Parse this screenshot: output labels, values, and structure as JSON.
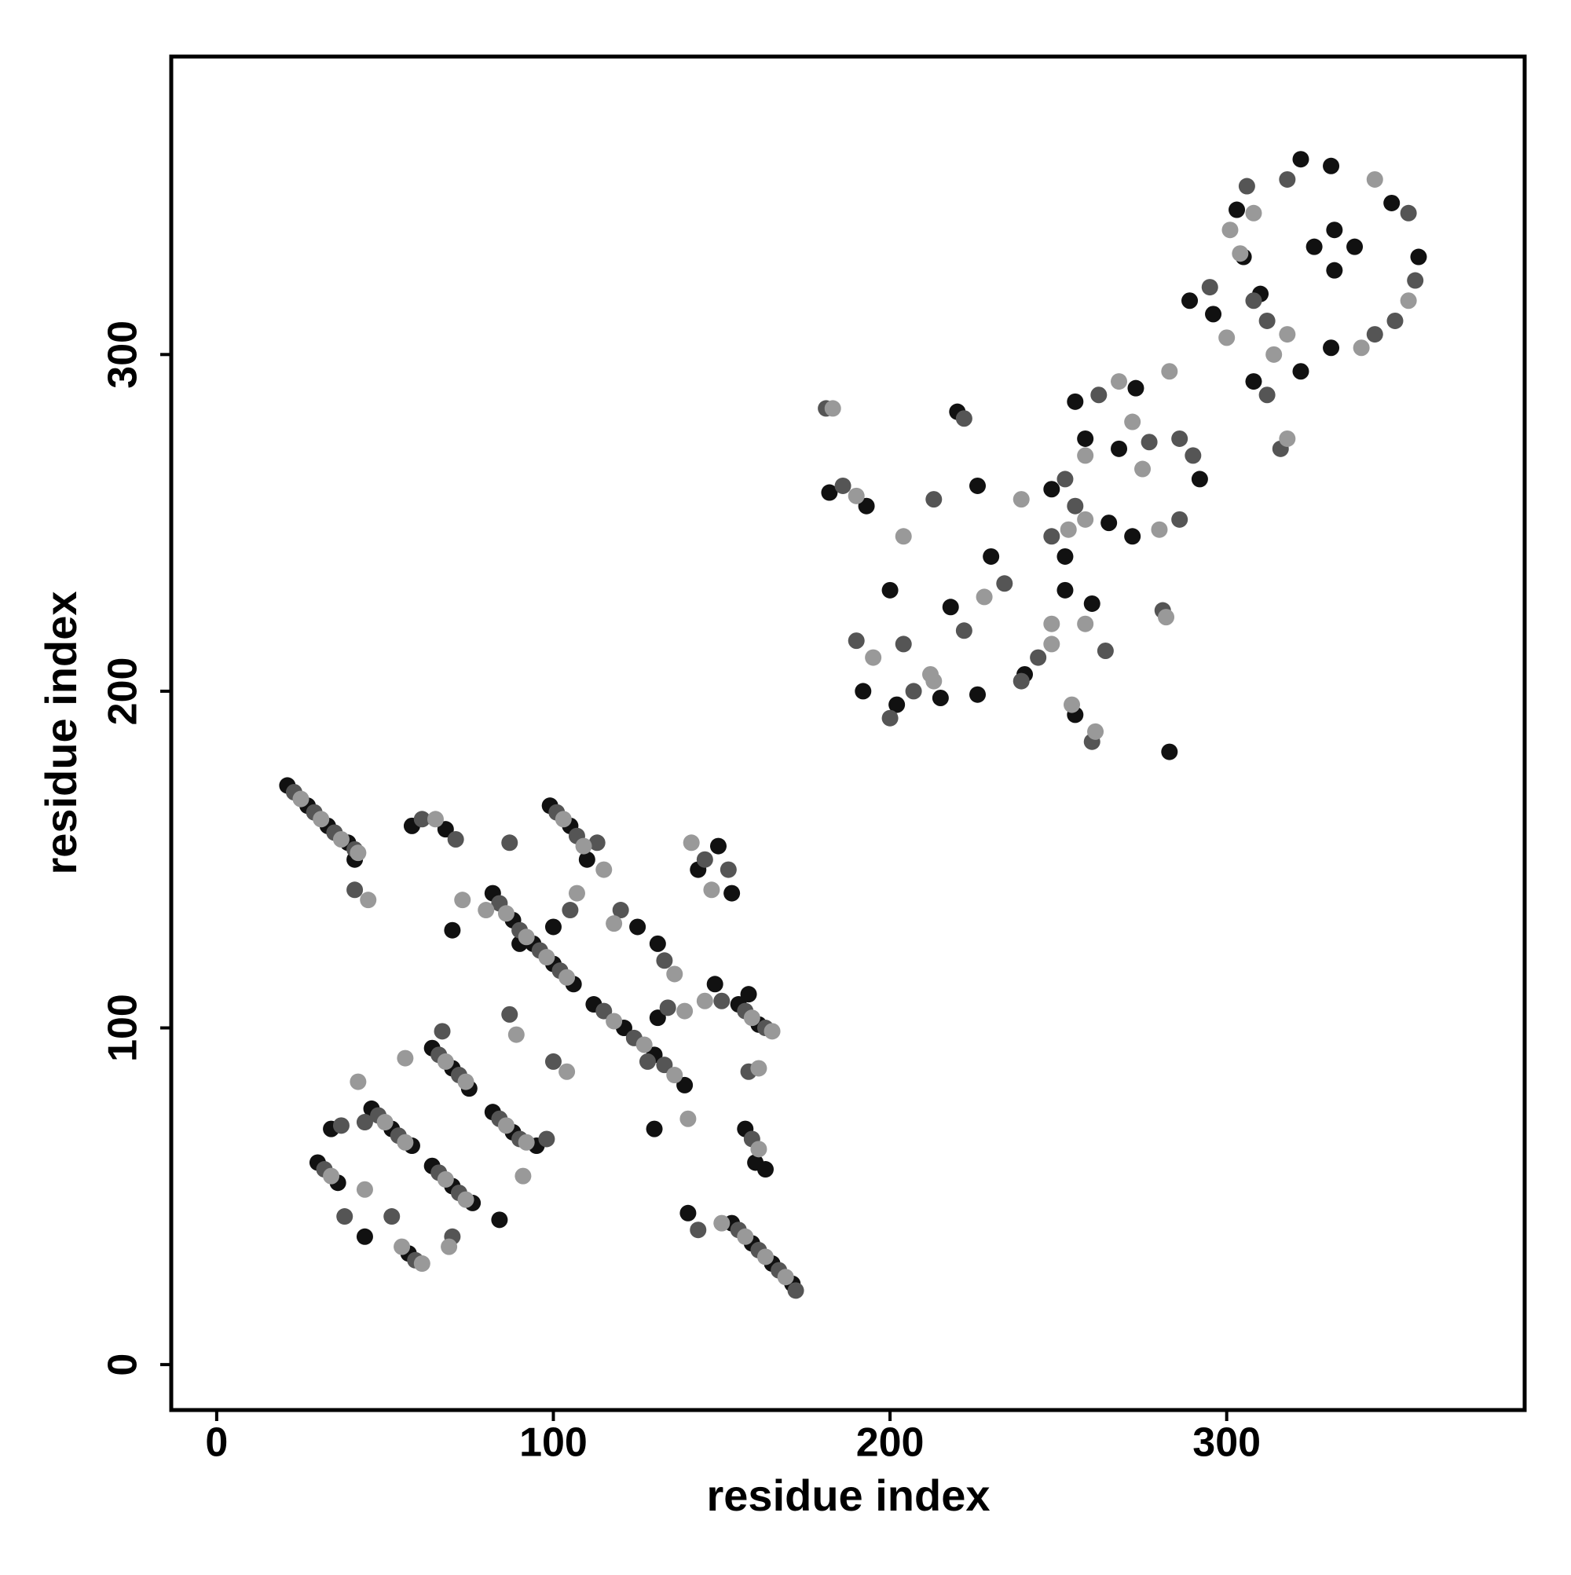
{
  "chart_data": {
    "type": "scatter",
    "xlabel": "residue index",
    "ylabel": "residue index",
    "xlim": [
      -13.5,
      388.5
    ],
    "ylim": [
      -13.5,
      388.5
    ],
    "xticks": [
      0,
      100,
      200,
      300
    ],
    "yticks": [
      0,
      100,
      200,
      300
    ],
    "grid": false,
    "series": [
      {
        "color": "#111111",
        "x": [
          21,
          27,
          33,
          39,
          41,
          153,
          159,
          165,
          171,
          140,
          82,
          88,
          94,
          100,
          106,
          90,
          112,
          121,
          130,
          139,
          130,
          99,
          105,
          110,
          100,
          155,
          161,
          148,
          158,
          64,
          70,
          75,
          46,
          52,
          58,
          34,
          64,
          70,
          76,
          82,
          88,
          95,
          84,
          30,
          36,
          44,
          57,
          58,
          68,
          70,
          143,
          149,
          153,
          131,
          131,
          125,
          157,
          160,
          163,
          357,
          331,
          305,
          331,
          349,
          322,
          326,
          332,
          338,
          332,
          240,
          252,
          255,
          273,
          289,
          303,
          310,
          308,
          322,
          296,
          292,
          258,
          272,
          265,
          268,
          252,
          226,
          200,
          226,
          230,
          218,
          182,
          193,
          220,
          255,
          283,
          202,
          215,
          192,
          260,
          248
        ],
        "values": [
          172,
          166,
          160,
          155,
          150,
          42,
          36,
          30,
          24,
          45,
          140,
          132,
          125,
          119,
          113,
          125,
          107,
          100,
          92,
          83,
          70,
          166,
          160,
          150,
          130,
          107,
          101,
          113,
          110,
          94,
          88,
          82,
          76,
          70,
          65,
          70,
          59,
          53,
          48,
          75,
          69,
          65,
          43,
          60,
          54,
          38,
          33,
          160,
          159,
          129,
          147,
          154,
          140,
          125,
          103,
          130,
          70,
          60,
          58,
          329,
          356,
          329,
          302,
          345,
          358,
          332,
          337,
          332,
          325,
          205,
          240,
          286,
          290,
          316,
          343,
          318,
          292,
          295,
          312,
          263,
          275,
          246,
          250,
          272,
          230,
          261,
          230,
          199,
          240,
          225,
          259,
          255,
          283,
          193,
          182,
          196,
          198,
          200,
          226,
          260
        ]
      },
      {
        "color": "#555555",
        "x": [
          23,
          29,
          35,
          41,
          41,
          155,
          161,
          167,
          172,
          143,
          84,
          90,
          96,
          102,
          87,
          115,
          124,
          133,
          128,
          101,
          107,
          113,
          105,
          157,
          163,
          150,
          66,
          72,
          67,
          48,
          54,
          44,
          37,
          66,
          72,
          70,
          84,
          90,
          98,
          32,
          38,
          52,
          59,
          61,
          71,
          87,
          145,
          152,
          133,
          134,
          120,
          159,
          158,
          100,
          354,
          318,
          308,
          344,
          356,
          350,
          244,
          255,
          262,
          277,
          295,
          306,
          312,
          312,
          316,
          286,
          252,
          286,
          290,
          248,
          213,
          204,
          239,
          234,
          222,
          186,
          181,
          222,
          260,
          281,
          207,
          190,
          200,
          264
        ],
        "values": [
          170,
          164,
          158,
          153,
          141,
          40,
          34,
          28,
          22,
          40,
          137,
          129,
          123,
          117,
          155,
          105,
          97,
          89,
          90,
          164,
          157,
          155,
          135,
          105,
          100,
          108,
          92,
          86,
          99,
          74,
          68,
          72,
          71,
          57,
          51,
          38,
          73,
          67,
          67,
          58,
          44,
          44,
          31,
          162,
          156,
          104,
          150,
          147,
          120,
          106,
          135,
          67,
          87,
          90,
          342,
          352,
          316,
          306,
          322,
          310,
          210,
          255,
          288,
          274,
          320,
          350,
          310,
          288,
          272,
          275,
          263,
          251,
          270,
          246,
          257,
          214,
          203,
          232,
          218,
          261,
          284,
          281,
          185,
          224,
          200,
          215,
          192,
          212
        ]
      },
      {
        "color": "#999999",
        "x": [
          25,
          31,
          37,
          42,
          45,
          157,
          163,
          169,
          150,
          86,
          92,
          98,
          104,
          80,
          118,
          127,
          136,
          140,
          103,
          109,
          115,
          107,
          159,
          165,
          145,
          68,
          74,
          56,
          50,
          56,
          42,
          68,
          74,
          69,
          86,
          92,
          91,
          34,
          44,
          55,
          61,
          65,
          73,
          89,
          141,
          147,
          136,
          139,
          118,
          161,
          161,
          104,
          344,
          308,
          318,
          354,
          340,
          248,
          258,
          268,
          283,
          301,
          304,
          314,
          318,
          300,
          272,
          258,
          280,
          275,
          239,
          204,
          213,
          248,
          228,
          190,
          183,
          254,
          261,
          282,
          212,
          195,
          258,
          253
        ],
        "values": [
          168,
          162,
          156,
          152,
          138,
          38,
          32,
          26,
          42,
          134,
          127,
          121,
          115,
          135,
          102,
          95,
          86,
          73,
          162,
          154,
          147,
          140,
          103,
          99,
          108,
          90,
          84,
          91,
          72,
          66,
          84,
          55,
          49,
          35,
          71,
          66,
          56,
          56,
          52,
          35,
          30,
          162,
          138,
          98,
          155,
          141,
          116,
          105,
          131,
          64,
          88,
          87,
          352,
          342,
          306,
          316,
          302,
          220,
          270,
          292,
          295,
          337,
          330,
          300,
          275,
          305,
          280,
          251,
          248,
          266,
          257,
          246,
          203,
          214,
          228,
          258,
          284,
          196,
          188,
          222,
          205,
          210,
          220,
          248
        ]
      }
    ]
  }
}
